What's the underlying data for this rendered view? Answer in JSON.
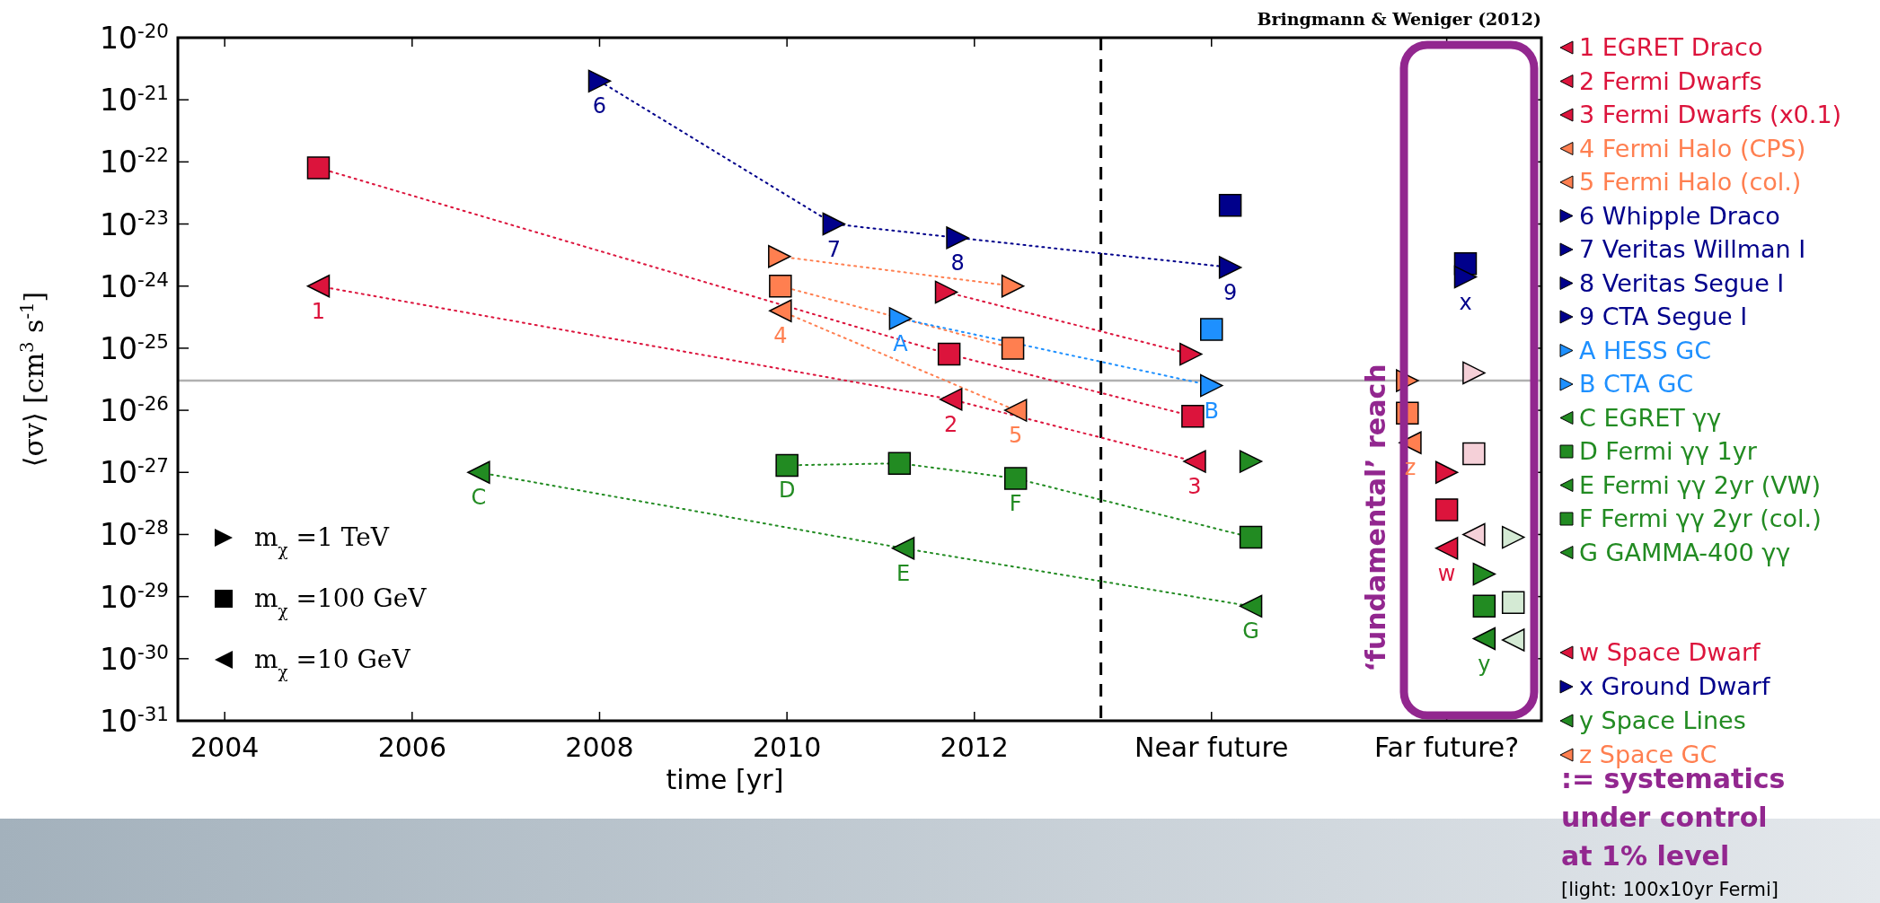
{
  "chart_data": {
    "type": "scatter",
    "xlabel": "time [yr]",
    "ylabel": "⟨σv⟩ [cm$^{3}$ s$^{-1}$]",
    "log": "y",
    "grid": false,
    "legend": "right",
    "xlim": [
      2003.5,
      2018.05
    ],
    "xticks": [
      2004,
      2006,
      2008,
      2010,
      2012,
      {
        "value": 2014.53,
        "label": "Near future"
      },
      {
        "value": 2017.04,
        "label": "Far future?"
      }
    ],
    "ylim": [
      1e-31,
      1e-20
    ],
    "yticks": [
      {
        "value": 1e-20,
        "label": "10$^{-20}$"
      },
      {
        "value": 1e-21,
        "label": "10$^{-21}$"
      },
      {
        "value": 1e-22,
        "label": "10$^{-22}$"
      },
      {
        "value": 1e-23,
        "label": "10$^{-23}$"
      },
      {
        "value": 1e-24,
        "label": "10$^{-24}$"
      },
      {
        "value": 1e-25,
        "label": "10$^{-25}$"
      },
      {
        "value": 1e-26,
        "label": "10$^{-26}$"
      },
      {
        "value": 1e-27,
        "label": "10$^{-27}$"
      },
      {
        "value": 1e-28,
        "label": "10$^{-28}$"
      },
      {
        "value": 1e-29,
        "label": "10$^{-29}$"
      },
      {
        "value": 1e-30,
        "label": "10$^{-30}$"
      },
      {
        "value": 1e-31,
        "label": "10$^{-31}$"
      }
    ],
    "ref_lines": [
      {
        "axis": "x",
        "value": 2013.35,
        "color": "#000000",
        "line_style": "dashed"
      },
      {
        "axis": "y",
        "value": 3e-26,
        "color": "#b0b0b0",
        "line_style": "solid"
      }
    ],
    "series": [
      {
        "type": "line",
        "line_style": "dotted",
        "marker": "none",
        "color": "#dc143c",
        "x": [
          2005,
          2011.73,
          2014.33
        ],
        "values": [
          8e-23,
          8e-26,
          8e-27
        ]
      },
      {
        "type": "line",
        "line_style": "dotted",
        "marker": "none",
        "color": "#dc143c",
        "x": [
          2005,
          2011.75,
          2014.35
        ],
        "values": [
          1e-24,
          1.5e-26,
          1.5e-27
        ]
      },
      {
        "type": "line",
        "line_style": "dotted",
        "marker": "none",
        "color": "#dc143c",
        "x": [
          2011.7,
          2014.31
        ],
        "values": [
          8e-25,
          8e-26
        ]
      },
      {
        "type": "line",
        "line_style": "dotted",
        "marker": "none",
        "color": "#ff7f50",
        "x": [
          2009.92,
          2012.41
        ],
        "values": [
          3e-24,
          1e-24
        ]
      },
      {
        "type": "line",
        "line_style": "dotted",
        "marker": "none",
        "color": "#ff7f50",
        "x": [
          2009.93,
          2012.41
        ],
        "values": [
          1e-24,
          1e-25
        ]
      },
      {
        "type": "line",
        "line_style": "dotted",
        "marker": "none",
        "color": "#ff7f50",
        "x": [
          2009.93,
          2012.44
        ],
        "values": [
          4e-25,
          1e-26
        ]
      },
      {
        "type": "line",
        "line_style": "dotted",
        "marker": "none",
        "color": "#00008b",
        "x": [
          2008,
          2010.5,
          2011.82,
          2014.73
        ],
        "values": [
          2e-21,
          1e-23,
          6e-24,
          2e-24
        ]
      },
      {
        "type": "line",
        "line_style": "dotted",
        "marker": "none",
        "color": "#1e90ff",
        "x": [
          2011.21,
          2014.53
        ],
        "values": [
          3e-25,
          2.5e-26
        ]
      },
      {
        "type": "line",
        "line_style": "dotted",
        "marker": "none",
        "color": "#228b22",
        "x": [
          2010,
          2011.2,
          2012.44,
          2014.95
        ],
        "values": [
          1.3e-27,
          1.4e-27,
          8e-28,
          9e-29
        ]
      },
      {
        "type": "line",
        "line_style": "dotted",
        "marker": "none",
        "color": "#228b22",
        "x": [
          2006.71,
          2011.24,
          2014.95
        ],
        "values": [
          1e-27,
          6e-29,
          7e-30
        ]
      },
      {
        "marker": "square",
        "color": "#dc143c",
        "x": [
          2005,
          2011.73,
          2014.33
        ],
        "values": [
          8e-23,
          8e-26,
          8e-27
        ]
      },
      {
        "marker": "triangle-right",
        "color": "#dc143c",
        "x": [
          2011.7,
          2014.31
        ],
        "values": [
          8e-25,
          8e-26
        ]
      },
      {
        "marker": "triangle-right",
        "color": "#ff7f50",
        "x": [
          2009.92,
          2012.41
        ],
        "values": [
          3e-24,
          1e-24
        ]
      },
      {
        "marker": "square",
        "color": "#ff7f50",
        "x": [
          2009.93,
          2012.41
        ],
        "values": [
          1e-24,
          1e-25
        ]
      },
      {
        "marker": "square",
        "color": "#00008b",
        "x": [
          2014.73
        ],
        "values": [
          2e-23
        ]
      },
      {
        "marker": "square",
        "color": "#1e90ff",
        "x": [
          2014.53
        ],
        "values": [
          2e-25
        ]
      },
      {
        "marker": "square",
        "color": "#228b22",
        "x": [
          2011.2,
          2014.95
        ],
        "values": [
          1.4e-27,
          9e-29
        ]
      },
      {
        "marker": "triangle-right",
        "color": "#228b22",
        "x": [
          2014.95
        ],
        "values": [
          1.5e-27
        ]
      },
      {
        "marker": "triangle-right",
        "color": "#ff7f50",
        "x": [
          2016.62
        ],
        "values": [
          3e-26
        ]
      },
      {
        "marker": "square",
        "color": "#ff7f50",
        "x": [
          2016.62
        ],
        "values": [
          9e-27
        ]
      },
      {
        "marker": "square",
        "color": "#00008b",
        "x": [
          2017.24
        ],
        "values": [
          2.3e-24
        ]
      },
      {
        "marker": "triangle-right",
        "color": "#dc143c",
        "x": [
          2017.04
        ],
        "values": [
          1e-27
        ]
      },
      {
        "marker": "square",
        "color": "#dc143c",
        "x": [
          2017.04
        ],
        "values": [
          2.5e-28
        ]
      },
      {
        "marker": "triangle-right",
        "color": "#228b22",
        "x": [
          2017.44
        ],
        "values": [
          2.3e-29
        ]
      },
      {
        "marker": "square",
        "color": "#228b22",
        "x": [
          2017.44
        ],
        "values": [
          7e-30
        ]
      },
      {
        "marker": "triangle-right",
        "color": "#f5d0d8",
        "x": [
          2017.33
        ],
        "values": [
          4e-26
        ]
      },
      {
        "marker": "square",
        "color": "#f5d0d8",
        "x": [
          2017.33
        ],
        "values": [
          2e-27
        ]
      },
      {
        "marker": "triangle-left",
        "color": "#f5d0d8",
        "x": [
          2017.33
        ],
        "values": [
          1e-28
        ]
      },
      {
        "marker": "triangle-right",
        "color": "#d4ead4",
        "x": [
          2017.75
        ],
        "values": [
          9e-29
        ]
      },
      {
        "marker": "square",
        "color": "#d4ead4",
        "x": [
          2017.75
        ],
        "values": [
          8e-30
        ]
      },
      {
        "marker": "triangle-left",
        "color": "#d4ead4",
        "x": [
          2017.75
        ],
        "values": [
          2e-30
        ]
      },
      {
        "name": "1 EGRET Draco",
        "marker": "triangle-left",
        "color": "#dc143c",
        "x": [
          2005
        ],
        "values": [
          1e-24
        ]
      },
      {
        "name": "2 Fermi Dwarfs",
        "marker": "triangle-left",
        "color": "#dc143c",
        "x": [
          2011.75
        ],
        "values": [
          1.5e-26
        ]
      },
      {
        "name": "3 Fermi Dwarfs (x0.1)",
        "marker": "triangle-left",
        "color": "#dc143c",
        "x": [
          2014.35
        ],
        "values": [
          1.5e-27
        ]
      },
      {
        "name": "4 Fermi Halo (CPS)",
        "marker": "triangle-left",
        "color": "#ff7f50",
        "x": [
          2009.93
        ],
        "values": [
          4e-25
        ]
      },
      {
        "name": "5 Fermi Halo (col.)",
        "marker": "triangle-left",
        "color": "#ff7f50",
        "x": [
          2012.44
        ],
        "values": [
          1e-26
        ]
      },
      {
        "name": "6 Whipple Draco",
        "marker": "triangle-right",
        "color": "#00008b",
        "x": [
          2008
        ],
        "values": [
          2e-21
        ]
      },
      {
        "name": "7 Veritas Willman I",
        "marker": "triangle-right",
        "color": "#00008b",
        "x": [
          2010.5
        ],
        "values": [
          1e-23
        ]
      },
      {
        "name": "8 Veritas Segue I",
        "marker": "triangle-right",
        "color": "#00008b",
        "x": [
          2011.82
        ],
        "values": [
          6e-24
        ]
      },
      {
        "name": "9 CTA Segue I",
        "marker": "triangle-right",
        "color": "#00008b",
        "x": [
          2014.73
        ],
        "values": [
          2e-24
        ]
      },
      {
        "name": "A HESS GC",
        "marker": "triangle-right",
        "color": "#1e90ff",
        "x": [
          2011.21
        ],
        "values": [
          3e-25
        ]
      },
      {
        "name": "B CTA GC",
        "marker": "triangle-right",
        "color": "#1e90ff",
        "x": [
          2014.53
        ],
        "values": [
          2.5e-26
        ]
      },
      {
        "name": "C EGRET γγ",
        "marker": "triangle-left",
        "color": "#228b22",
        "x": [
          2006.71
        ],
        "values": [
          1e-27
        ]
      },
      {
        "name": "D Fermi γγ 1yr",
        "marker": "square",
        "color": "#228b22",
        "x": [
          2010
        ],
        "values": [
          1.3e-27
        ]
      },
      {
        "name": "E Fermi γγ 2yr (VW)",
        "marker": "triangle-left",
        "color": "#228b22",
        "x": [
          2011.24
        ],
        "values": [
          6e-29
        ]
      },
      {
        "name": "F Fermi γγ 2yr (col.)",
        "marker": "square",
        "color": "#228b22",
        "x": [
          2012.44
        ],
        "values": [
          8e-28
        ]
      },
      {
        "name": "G GAMMA-400 γγ",
        "marker": "triangle-left",
        "color": "#228b22",
        "x": [
          2014.95
        ],
        "values": [
          7e-30
        ]
      },
      {
        "name": "w Space Dwarf",
        "marker": "triangle-left",
        "color": "#dc143c",
        "x": [
          2017.04
        ],
        "values": [
          6e-29
        ]
      },
      {
        "name": "x Ground Dwarf",
        "marker": "triangle-right",
        "color": "#00008b",
        "x": [
          2017.24
        ],
        "values": [
          1.4e-24
        ]
      },
      {
        "name": "y Space Lines",
        "marker": "triangle-left",
        "color": "#228b22",
        "x": [
          2017.44
        ],
        "values": [
          2.1e-30
        ]
      },
      {
        "name": "z Space GC",
        "marker": "triangle-left",
        "color": "#ff7f50",
        "x": [
          2016.65
        ],
        "values": [
          3e-27
        ]
      }
    ],
    "annotations": [
      "Bringmann & Weniger (2012)",
      "m$_{χ}$ =1 TeV",
      "m$_{χ}$ =100 GeV",
      "m$_{χ}$ =10 GeV",
      ":= systematics",
      "under control",
      "at 1% level",
      "[light: 100x10yr Fermi]",
      "‘fundamental’ reach",
      {
        "text": "1",
        "x": 2005,
        "y": 1e-24
      },
      {
        "text": "2",
        "x": 2011.75,
        "y": 1.5e-26
      },
      {
        "text": "3",
        "x": 2014.35,
        "y": 1.5e-27
      },
      {
        "text": "4",
        "x": 2009.93,
        "y": 4e-25
      },
      {
        "text": "5",
        "x": 2012.44,
        "y": 1e-26
      },
      {
        "text": "6",
        "x": 2008,
        "y": 2e-21
      },
      {
        "text": "7",
        "x": 2010.5,
        "y": 1e-23
      },
      {
        "text": "8",
        "x": 2011.82,
        "y": 6e-24
      },
      {
        "text": "9",
        "x": 2014.73,
        "y": 2e-24
      },
      {
        "text": "A",
        "x": 2011.21,
        "y": 3e-25
      },
      {
        "text": "B",
        "x": 2014.53,
        "y": 2.5e-26
      },
      {
        "text": "C",
        "x": 2006.71,
        "y": 1e-27
      },
      {
        "text": "D",
        "x": 2010,
        "y": 1.3e-27
      },
      {
        "text": "E",
        "x": 2011.24,
        "y": 6e-29
      },
      {
        "text": "F",
        "x": 2012.44,
        "y": 8e-28
      },
      {
        "text": "G",
        "x": 2014.95,
        "y": 7e-30
      },
      {
        "text": "w",
        "x": 2017.04,
        "y": 6e-29
      },
      {
        "text": "x",
        "x": 2017.24,
        "y": 1.4e-24
      },
      {
        "text": "y",
        "x": 2017.44,
        "y": 2.1e-30
      },
      {
        "text": "z",
        "x": 2016.65,
        "y": 3e-27
      }
    ]
  }
}
